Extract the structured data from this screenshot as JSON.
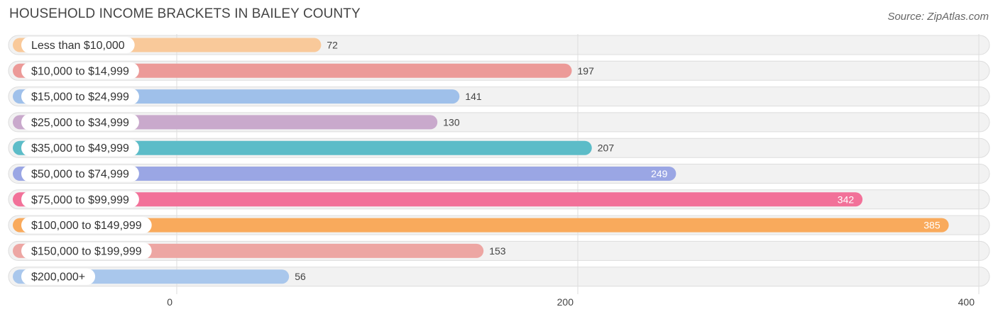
{
  "title": "HOUSEHOLD INCOME BRACKETS IN BAILEY COUNTY",
  "source": "Source: ZipAtlas.com",
  "chart_data": {
    "type": "bar",
    "orientation": "horizontal",
    "title": "HOUSEHOLD INCOME BRACKETS IN BAILEY COUNTY",
    "categories": [
      "Less than $10,000",
      "$10,000 to $14,999",
      "$15,000 to $24,999",
      "$25,000 to $34,999",
      "$35,000 to $49,999",
      "$50,000 to $74,999",
      "$75,000 to $99,999",
      "$100,000 to $149,999",
      "$150,000 to $199,999",
      "$200,000+"
    ],
    "values": [
      72,
      197,
      141,
      130,
      207,
      249,
      342,
      385,
      153,
      56
    ],
    "colors": [
      "#f9c99a",
      "#ec9a98",
      "#9fc0ea",
      "#c9a9cc",
      "#5cbcc8",
      "#9aa6e4",
      "#f27199",
      "#f9aa5c",
      "#eda6a3",
      "#a9c7ec"
    ],
    "xlim": [
      0,
      400
    ],
    "xticks": [
      0,
      200,
      400
    ],
    "xlabel": "",
    "ylabel": "",
    "grid": true,
    "value_labels_inside_from": 249
  }
}
